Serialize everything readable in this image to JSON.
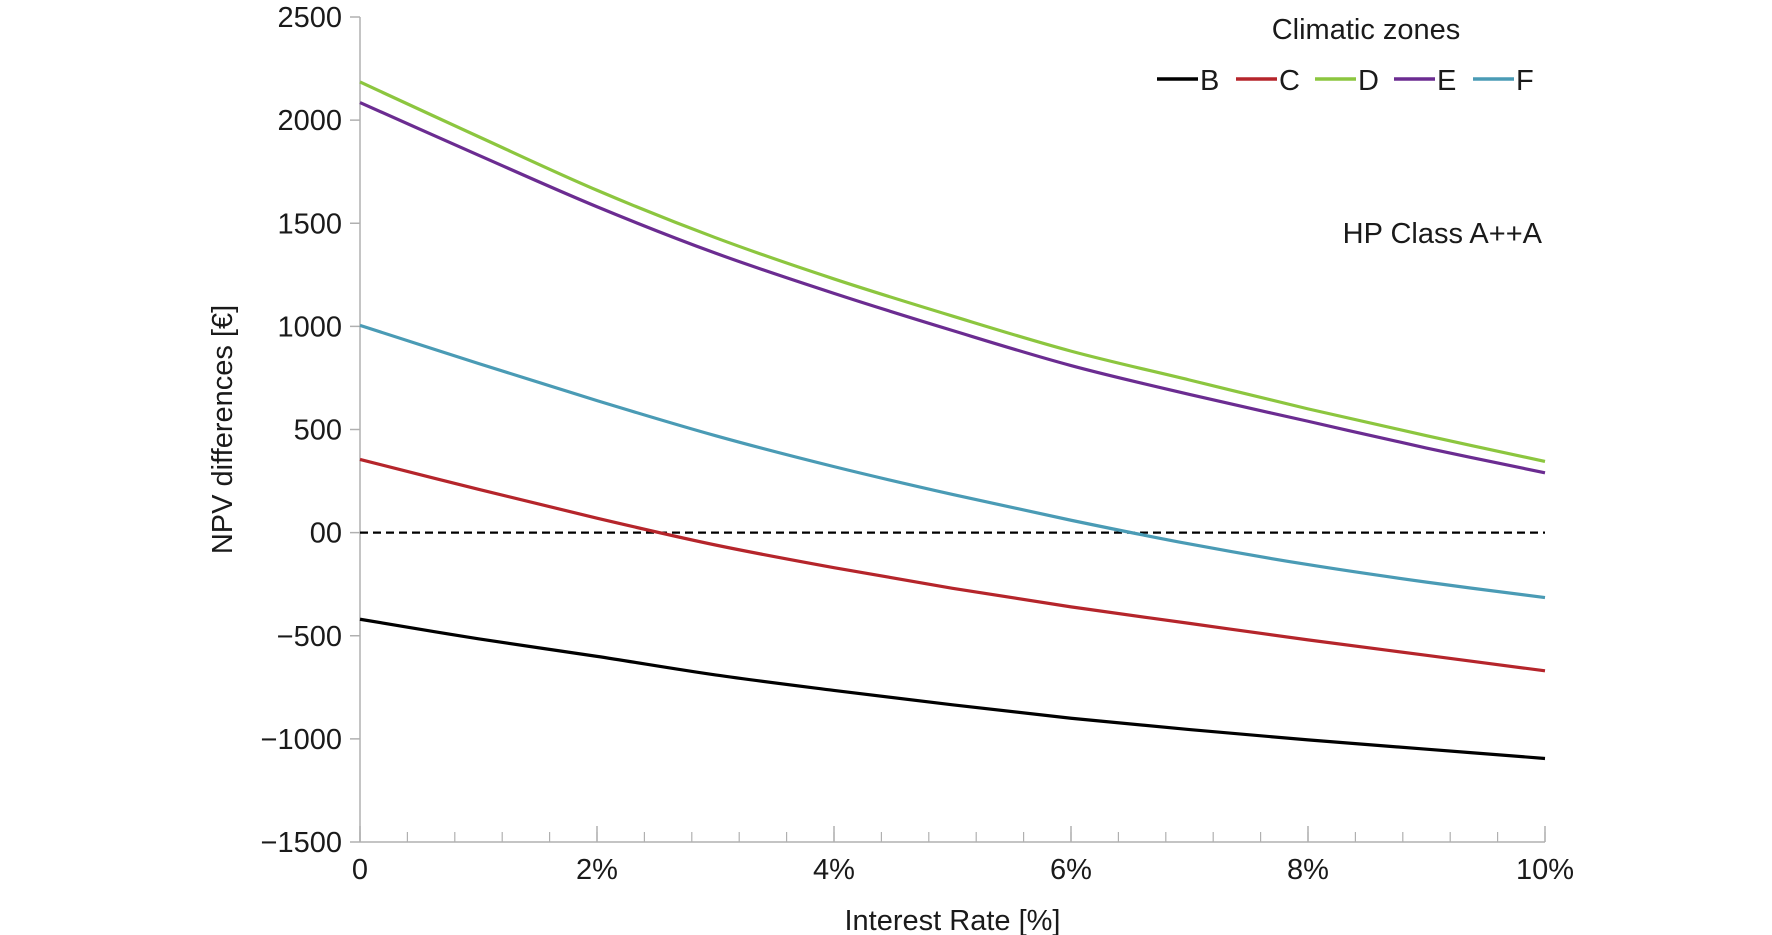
{
  "chart_data": {
    "type": "line",
    "title": "",
    "xlabel": "Interest Rate [%]",
    "ylabel": "NPV differences [€]",
    "xlim": [
      0,
      10
    ],
    "ylim": [
      -1500,
      2500
    ],
    "x_ticks": [
      0,
      2,
      4,
      6,
      8,
      10
    ],
    "x_tick_labels": [
      "0",
      "2%",
      "4%",
      "6%",
      "8%",
      "10%"
    ],
    "x_minor_step": 0.4,
    "y_ticks": [
      2500,
      2000,
      1500,
      1000,
      500,
      0,
      -500,
      -1000,
      -1500
    ],
    "y_tick_labels": [
      "2500",
      "2000",
      "1500",
      "1000",
      "500",
      "00",
      "−500",
      "−1000",
      "−1500"
    ],
    "grid": false,
    "reference_line": {
      "y": 0,
      "style": "dashed",
      "color": "#000000"
    },
    "legend": {
      "title": "Climatic zones",
      "position": "top-right",
      "orientation": "horizontal"
    },
    "annotation": "HP Class A++A",
    "x": [
      0,
      1,
      2,
      3,
      4,
      5,
      6,
      7,
      8,
      9,
      10
    ],
    "series": [
      {
        "name": "B",
        "color": "#000000",
        "values": [
          -420,
          -515,
          -600,
          -690,
          -765,
          -835,
          -900,
          -955,
          -1005,
          -1050,
          -1095
        ]
      },
      {
        "name": "C",
        "color": "#b5252b",
        "values": [
          355,
          210,
          70,
          -60,
          -170,
          -270,
          -360,
          -440,
          -520,
          -595,
          -670
        ]
      },
      {
        "name": "D",
        "color": "#8cc63f",
        "values": [
          2185,
          1920,
          1660,
          1430,
          1230,
          1050,
          880,
          740,
          600,
          470,
          345
        ]
      },
      {
        "name": "E",
        "color": "#6b2c91",
        "values": [
          2085,
          1830,
          1580,
          1355,
          1160,
          980,
          810,
          670,
          540,
          410,
          290
        ]
      },
      {
        "name": "F",
        "color": "#4a9bb5",
        "values": [
          1005,
          820,
          640,
          470,
          320,
          185,
          60,
          -55,
          -155,
          -240,
          -315
        ]
      }
    ]
  }
}
